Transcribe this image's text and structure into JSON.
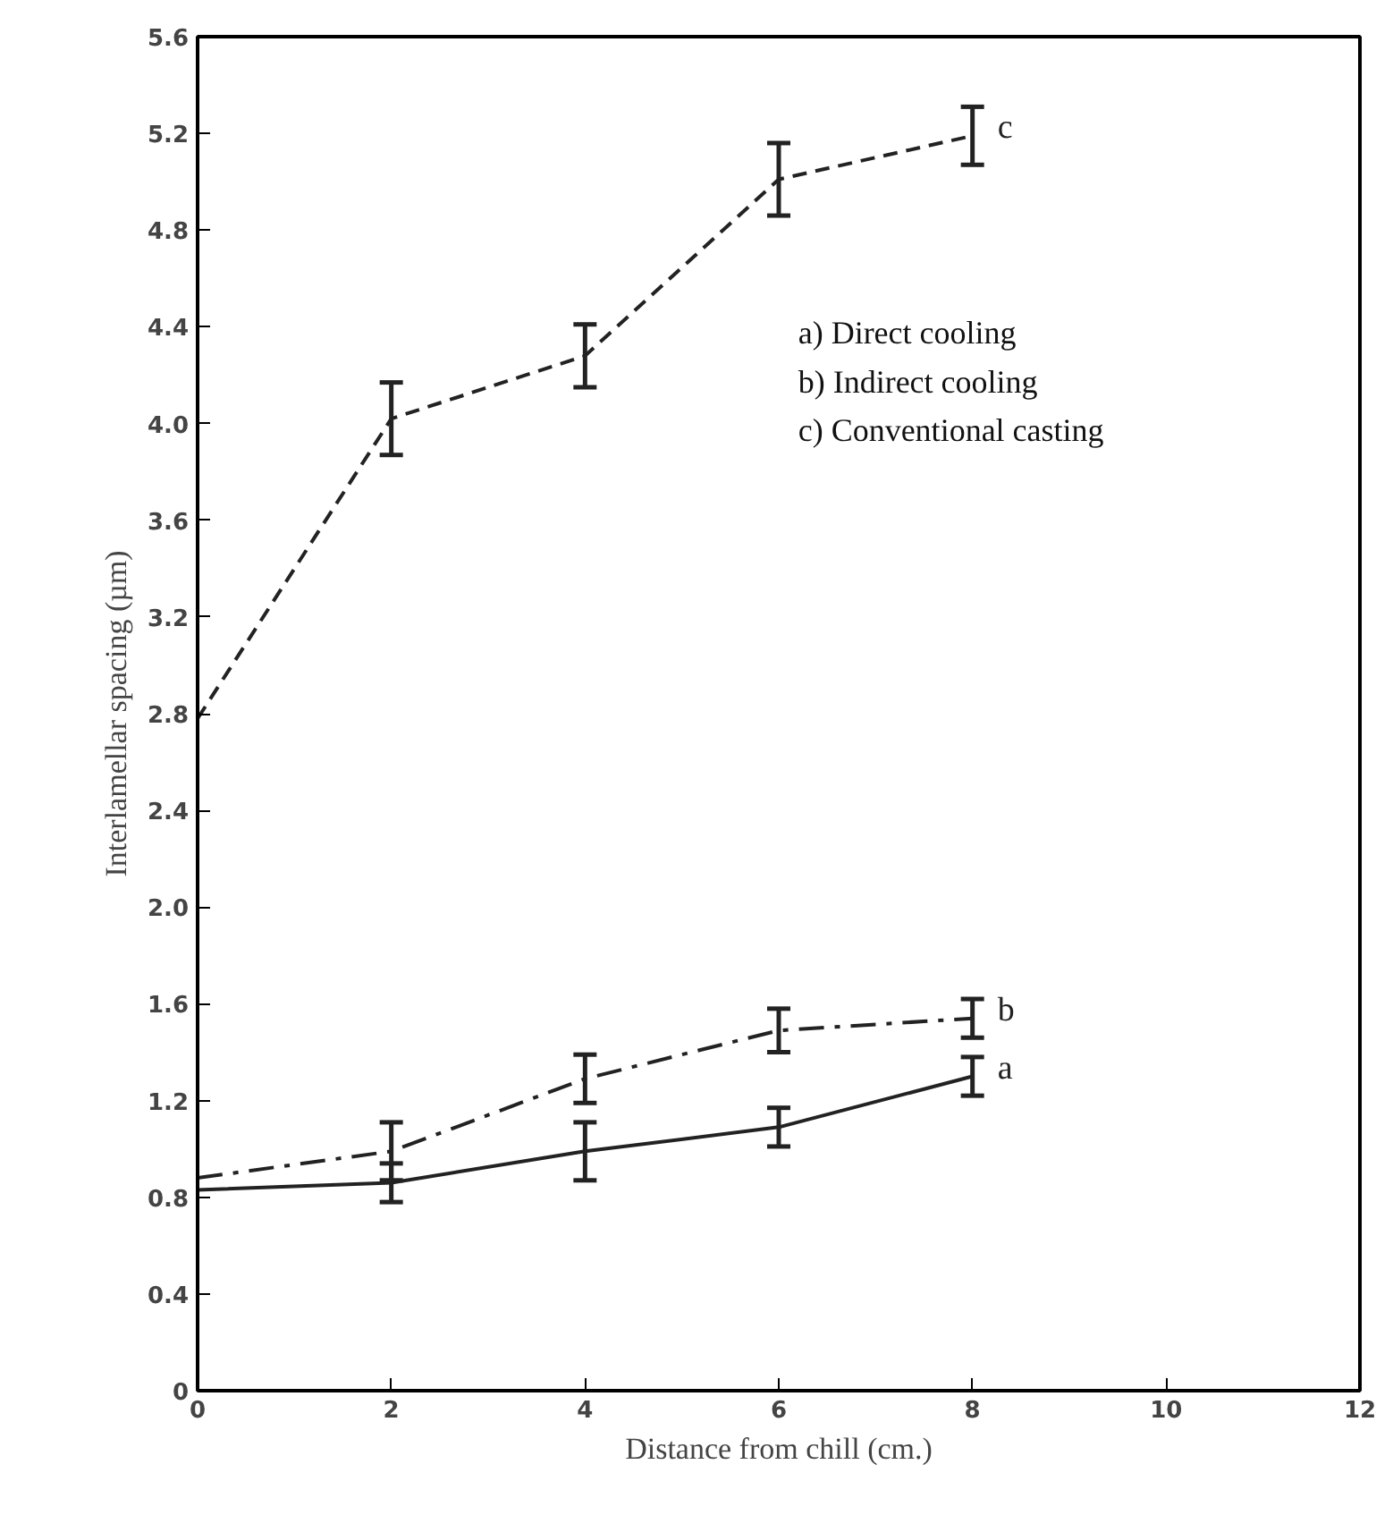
{
  "chart_data": {
    "type": "line",
    "xlabel": "Distance from chill (cm.)",
    "ylabel": "Interlamellar spacing (µm)",
    "x": [
      0,
      2,
      4,
      6,
      8
    ],
    "xlim": [
      0,
      12
    ],
    "xticks": [
      0,
      2,
      4,
      6,
      8,
      10,
      12
    ],
    "ylim": [
      0,
      5.6
    ],
    "yticks": [
      0,
      0.4,
      0.8,
      1.2,
      1.6,
      {
        "value": 2,
        "label": "2.0"
      },
      2.4,
      2.8,
      3.2,
      3.6,
      {
        "value": 4,
        "label": "4.0"
      },
      4.4,
      4.8,
      5.2,
      5.6
    ],
    "grid": false,
    "marker": "none",
    "series": [
      {
        "name": "a",
        "color": "#222222",
        "line_style": "solid",
        "values": [
          0.83,
          0.86,
          0.99,
          1.09,
          1.3
        ],
        "errors": [
          null,
          0.08,
          0.12,
          0.08,
          0.08
        ]
      },
      {
        "name": "b",
        "color": "#222222",
        "line_style": "dashdot",
        "values": [
          0.88,
          0.99,
          1.29,
          1.49,
          1.54
        ],
        "errors": [
          null,
          0.12,
          0.1,
          0.09,
          0.08
        ]
      },
      {
        "name": "c",
        "color": "#222222",
        "line_style": "dashed",
        "values": [
          2.78,
          4.02,
          4.28,
          5.01,
          5.19
        ],
        "errors": [
          null,
          0.15,
          0.13,
          0.15,
          0.12
        ]
      }
    ],
    "annotations": [
      "a) Direct cooling",
      "b) Indirect cooling",
      "c) Conventional casting"
    ]
  }
}
